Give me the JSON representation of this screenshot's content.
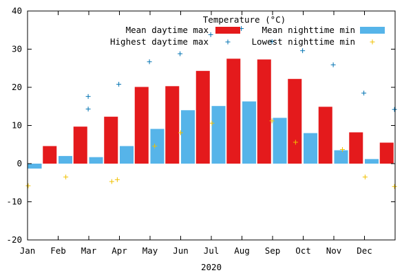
{
  "chart_data": {
    "type": "bar",
    "title": "Temperature (°C)",
    "xlabel": "2020",
    "ylabel": "",
    "ylim": [
      -20,
      40
    ],
    "yticks": [
      -20,
      -10,
      0,
      10,
      20,
      30,
      40
    ],
    "grid": false,
    "legend_position": "top-right",
    "categories": [
      "Jan",
      "Feb",
      "Mar",
      "Apr",
      "May",
      "Jun",
      "Jul",
      "Aug",
      "Sep",
      "Oct",
      "Nov",
      "Dec"
    ],
    "series": [
      {
        "name": "Mean daytime max",
        "kind": "bar",
        "color": "#e41a1c",
        "values": [
          4.6,
          9.7,
          12.3,
          20.1,
          20.3,
          24.3,
          27.5,
          27.3,
          22.2,
          14.9,
          8.2,
          5.5
        ]
      },
      {
        "name": "Mean nighttime min",
        "kind": "bar",
        "color": "#56b4e9",
        "values": [
          -1.3,
          2.0,
          1.7,
          4.6,
          9.1,
          14.0,
          15.1,
          16.3,
          12.0,
          8.0,
          3.5,
          1.2
        ]
      },
      {
        "name": "Highest daytime max",
        "kind": "points",
        "color": "#0072b2",
        "points": [
          {
            "x": 1.98,
            "y": 17.6
          },
          {
            "x": 1.98,
            "y": 14.3
          },
          {
            "x": 2.98,
            "y": 20.8
          },
          {
            "x": 3.98,
            "y": 26.7
          },
          {
            "x": 4.98,
            "y": 28.8
          },
          {
            "x": 5.98,
            "y": 33.8
          },
          {
            "x": 6.98,
            "y": 35.4
          },
          {
            "x": 7.98,
            "y": 32.0
          },
          {
            "x": 8.98,
            "y": 29.6
          },
          {
            "x": 9.98,
            "y": 25.9
          },
          {
            "x": 10.98,
            "y": 18.5
          },
          {
            "x": 11.98,
            "y": 14.2
          }
        ]
      },
      {
        "name": "Lowest nighttime min",
        "kind": "points",
        "color": "#f0c000",
        "points": [
          {
            "x": 0.02,
            "y": -5.8
          },
          {
            "x": 1.25,
            "y": -3.5
          },
          {
            "x": 2.75,
            "y": -4.7
          },
          {
            "x": 2.93,
            "y": -4.2
          },
          {
            "x": 4.15,
            "y": 4.6
          },
          {
            "x": 5.0,
            "y": 8.1
          },
          {
            "x": 6.02,
            "y": 10.6
          },
          {
            "x": 7.98,
            "y": 11.2
          },
          {
            "x": 8.75,
            "y": 5.6
          },
          {
            "x": 10.28,
            "y": 3.7
          },
          {
            "x": 11.02,
            "y": -3.5
          },
          {
            "x": 11.98,
            "y": -6.0
          }
        ]
      }
    ]
  }
}
